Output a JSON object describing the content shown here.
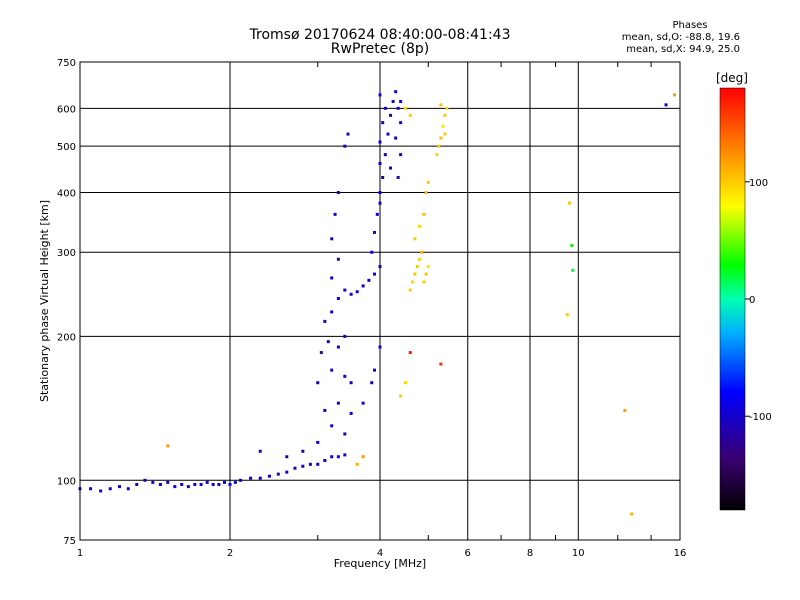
{
  "header": {
    "title_line1": "Tromsø 20170624 08:40:00-08:41:43",
    "title_line2": "RwPretec (8p)"
  },
  "legend": {
    "heading": "Phases",
    "line_o": "mean, sd,O: -88.8, 19.6",
    "line_x": "mean, sd,X:  94.9, 25.0"
  },
  "colorbar": {
    "label": "[deg]",
    "ticks": [
      100,
      0,
      -100
    ],
    "range": [
      -180,
      180
    ]
  },
  "colors": {
    "axis": "#000000",
    "background": "#ffffff"
  },
  "chart_data": {
    "type": "scatter",
    "title": "Tromsø 20170624 08:40:00-08:41:43 RwPretec (8p)",
    "xlabel": "Frequency [MHz]",
    "ylabel": "Stationary phase Virtual Height [km]",
    "xscale": "log",
    "yscale": "log",
    "xlim": [
      1,
      16
    ],
    "ylim": [
      75,
      750
    ],
    "xticks": [
      1,
      2,
      4,
      6,
      8,
      10,
      16
    ],
    "yticks": [
      75,
      100,
      200,
      300,
      400,
      500,
      600,
      750
    ],
    "grid": true,
    "color_scale": "phase [deg], -180 to 180 (rainbow)",
    "series": [
      {
        "name": "O",
        "points": [
          [
            1.0,
            96,
            -100
          ],
          [
            1.05,
            96,
            -90
          ],
          [
            1.1,
            95,
            -85
          ],
          [
            1.15,
            96,
            -100
          ],
          [
            1.2,
            97,
            -95
          ],
          [
            1.25,
            96,
            -100
          ],
          [
            1.3,
            98,
            -110
          ],
          [
            1.35,
            100,
            -120
          ],
          [
            1.4,
            99,
            -100
          ],
          [
            1.45,
            98,
            -105
          ],
          [
            1.5,
            99,
            -100
          ],
          [
            1.55,
            97,
            -90
          ],
          [
            1.6,
            98,
            -100
          ],
          [
            1.65,
            97,
            -110
          ],
          [
            1.7,
            98,
            -100
          ],
          [
            1.75,
            98,
            -95
          ],
          [
            1.8,
            99,
            -100
          ],
          [
            1.85,
            98,
            -105
          ],
          [
            1.9,
            98,
            -100
          ],
          [
            1.95,
            99,
            -90
          ],
          [
            2.0,
            98,
            -85
          ],
          [
            2.05,
            99,
            -80
          ],
          [
            2.1,
            100,
            -95
          ],
          [
            2.2,
            101,
            -100
          ],
          [
            2.3,
            101,
            -105
          ],
          [
            2.4,
            102,
            -100
          ],
          [
            2.5,
            103,
            -110
          ],
          [
            2.6,
            104,
            -100
          ],
          [
            2.7,
            106,
            -105
          ],
          [
            2.8,
            107,
            -95
          ],
          [
            2.9,
            108,
            -100
          ],
          [
            3.0,
            108,
            -100
          ],
          [
            3.1,
            110,
            -105
          ],
          [
            3.2,
            112,
            -95
          ],
          [
            3.3,
            112,
            -90
          ],
          [
            3.4,
            113,
            -100
          ],
          [
            2.8,
            115,
            -110
          ],
          [
            3.0,
            120,
            -95
          ],
          [
            3.2,
            130,
            -100
          ],
          [
            3.4,
            125,
            -105
          ],
          [
            3.1,
            140,
            -100
          ],
          [
            3.3,
            145,
            -110
          ],
          [
            3.5,
            138,
            -95
          ],
          [
            3.0,
            160,
            -100
          ],
          [
            3.2,
            170,
            -110
          ],
          [
            3.4,
            165,
            -105
          ],
          [
            3.5,
            160,
            -100
          ],
          [
            3.05,
            185,
            -120
          ],
          [
            3.15,
            195,
            -110
          ],
          [
            3.3,
            190,
            -100
          ],
          [
            3.4,
            200,
            -105
          ],
          [
            3.1,
            215,
            -110
          ],
          [
            3.2,
            225,
            -105
          ],
          [
            3.3,
            240,
            -100
          ],
          [
            3.4,
            250,
            -110
          ],
          [
            3.5,
            245,
            -100
          ],
          [
            3.6,
            248,
            -95
          ],
          [
            3.7,
            255,
            -100
          ],
          [
            3.8,
            262,
            -105
          ],
          [
            3.9,
            270,
            -100
          ],
          [
            4.0,
            280,
            -110
          ],
          [
            3.2,
            265,
            -100
          ],
          [
            3.3,
            290,
            -105
          ],
          [
            3.2,
            320,
            -110
          ],
          [
            3.25,
            360,
            -100
          ],
          [
            3.3,
            400,
            -105
          ],
          [
            3.85,
            300,
            -100
          ],
          [
            3.9,
            330,
            -110
          ],
          [
            3.95,
            360,
            -100
          ],
          [
            4.0,
            380,
            -105
          ],
          [
            4.0,
            400,
            -100
          ],
          [
            4.05,
            430,
            -110
          ],
          [
            4.0,
            460,
            -100
          ],
          [
            4.1,
            480,
            -105
          ],
          [
            4.0,
            510,
            -100
          ],
          [
            4.15,
            530,
            -110
          ],
          [
            4.05,
            560,
            -100
          ],
          [
            4.2,
            580,
            -105
          ],
          [
            4.1,
            600,
            -100
          ],
          [
            4.25,
            620,
            -110
          ],
          [
            4.0,
            640,
            -100
          ],
          [
            4.3,
            650,
            -105
          ],
          [
            4.35,
            600,
            -100
          ],
          [
            4.4,
            560,
            -110
          ],
          [
            4.3,
            520,
            -100
          ],
          [
            4.4,
            480,
            -105
          ],
          [
            4.2,
            450,
            -100
          ],
          [
            4.35,
            430,
            -110
          ],
          [
            4.4,
            620,
            -100
          ],
          [
            3.4,
            500,
            -100
          ],
          [
            3.45,
            530,
            -105
          ],
          [
            3.7,
            145,
            -100
          ],
          [
            3.85,
            160,
            -105
          ],
          [
            4.0,
            190,
            -100
          ],
          [
            3.9,
            170,
            -110
          ],
          [
            2.3,
            115,
            -100
          ],
          [
            2.6,
            112,
            -105
          ],
          [
            15.0,
            610,
            -100
          ]
        ]
      },
      {
        "name": "X",
        "points": [
          [
            4.6,
            250,
            100
          ],
          [
            4.65,
            260,
            95
          ],
          [
            4.7,
            270,
            105
          ],
          [
            4.75,
            280,
            100
          ],
          [
            4.8,
            290,
            95
          ],
          [
            4.85,
            300,
            110
          ],
          [
            4.9,
            260,
            100
          ],
          [
            4.95,
            270,
            105
          ],
          [
            5.0,
            280,
            90
          ],
          [
            4.7,
            320,
            100
          ],
          [
            4.8,
            340,
            95
          ],
          [
            4.9,
            360,
            105
          ],
          [
            4.95,
            400,
            110
          ],
          [
            5.0,
            420,
            100
          ],
          [
            5.2,
            480,
            95
          ],
          [
            5.25,
            500,
            100
          ],
          [
            5.3,
            520,
            105
          ],
          [
            5.35,
            550,
            90
          ],
          [
            5.4,
            580,
            100
          ],
          [
            5.45,
            600,
            95
          ],
          [
            5.3,
            610,
            105
          ],
          [
            5.4,
            530,
            100
          ],
          [
            4.5,
            600,
            95
          ],
          [
            4.6,
            580,
            100
          ],
          [
            9.6,
            380,
            100
          ],
          [
            9.7,
            310,
            30
          ],
          [
            9.75,
            275,
            20
          ],
          [
            9.5,
            222,
            100
          ],
          [
            12.4,
            140,
            120
          ],
          [
            12.8,
            85,
            110
          ],
          [
            15.6,
            640,
            120
          ],
          [
            1.5,
            118,
            120
          ],
          [
            5.3,
            175,
            160
          ],
          [
            4.6,
            185,
            170
          ],
          [
            4.4,
            150,
            100
          ],
          [
            4.5,
            160,
            95
          ],
          [
            3.6,
            108,
            110
          ],
          [
            3.7,
            112,
            120
          ]
        ]
      }
    ]
  }
}
